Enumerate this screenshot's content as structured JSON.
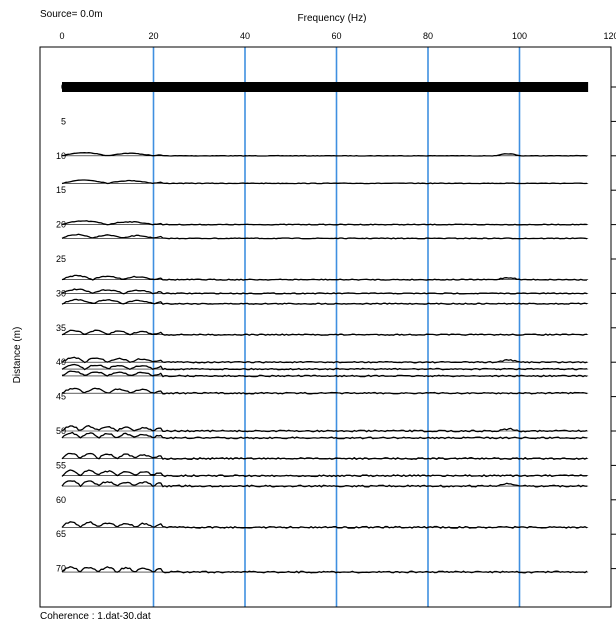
{
  "source_label": "Source=  0.0m",
  "footer_label": "Coherence : 1.dat-30.dat",
  "chart_data": {
    "type": "line",
    "xlabel": "Frequency (Hz)",
    "ylabel": "Distance (m)",
    "xlim": [
      0,
      120
    ],
    "ylim": [
      75,
      -5
    ],
    "x_ticks": [
      "0",
      "20",
      "40",
      "60",
      "80",
      "100",
      "120"
    ],
    "y_ticks": [
      "0",
      "5",
      "10",
      "15",
      "20",
      "25",
      "30",
      "35",
      "40",
      "45",
      "50",
      "55",
      "60",
      "65",
      "70"
    ],
    "highlight_gridlines_x": [
      20,
      40,
      60,
      80,
      100
    ],
    "grid": "vertical lines at 20, 40, 60, 80, 100 Hz",
    "trace_frequency_range": [
      0,
      115
    ],
    "colors": {
      "gridline": "#3f8fe0",
      "trace": "#000000",
      "frame": "#000000"
    },
    "series": [
      {
        "offset": 0
      },
      {
        "offset": 10
      },
      {
        "offset": 14
      },
      {
        "offset": 20
      },
      {
        "offset": 22
      },
      {
        "offset": 28
      },
      {
        "offset": 30
      },
      {
        "offset": 31.5
      },
      {
        "offset": 36
      },
      {
        "offset": 40
      },
      {
        "offset": 41
      },
      {
        "offset": 42
      },
      {
        "offset": 44.5
      },
      {
        "offset": 50
      },
      {
        "offset": 51
      },
      {
        "offset": 54
      },
      {
        "offset": 56.5
      },
      {
        "offset": 58
      },
      {
        "offset": 64
      },
      {
        "offset": 70.5
      }
    ]
  }
}
